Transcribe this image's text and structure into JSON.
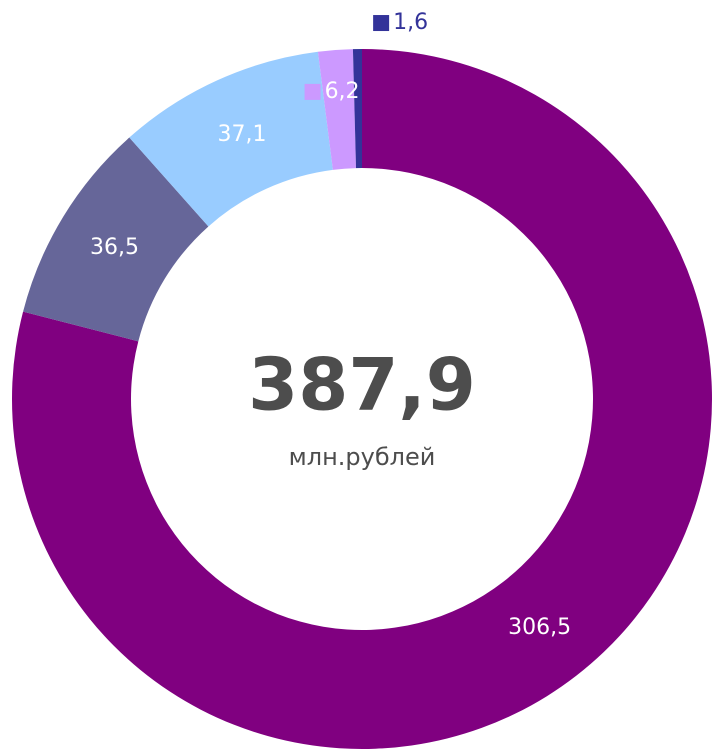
{
  "chart_data": {
    "type": "donut",
    "categories": [
      null,
      null,
      null,
      null,
      null
    ],
    "values": [
      306.5,
      36.5,
      37.1,
      6.2,
      1.6
    ],
    "value_labels": [
      "306,5",
      "36,5",
      "37,1",
      "6,2",
      "1,6"
    ],
    "colors": [
      "#800080",
      "#666699",
      "#99ccff",
      "#cc99ff",
      "#333399"
    ],
    "center_text": "387,9",
    "center_subtext": "млн.рублей"
  }
}
